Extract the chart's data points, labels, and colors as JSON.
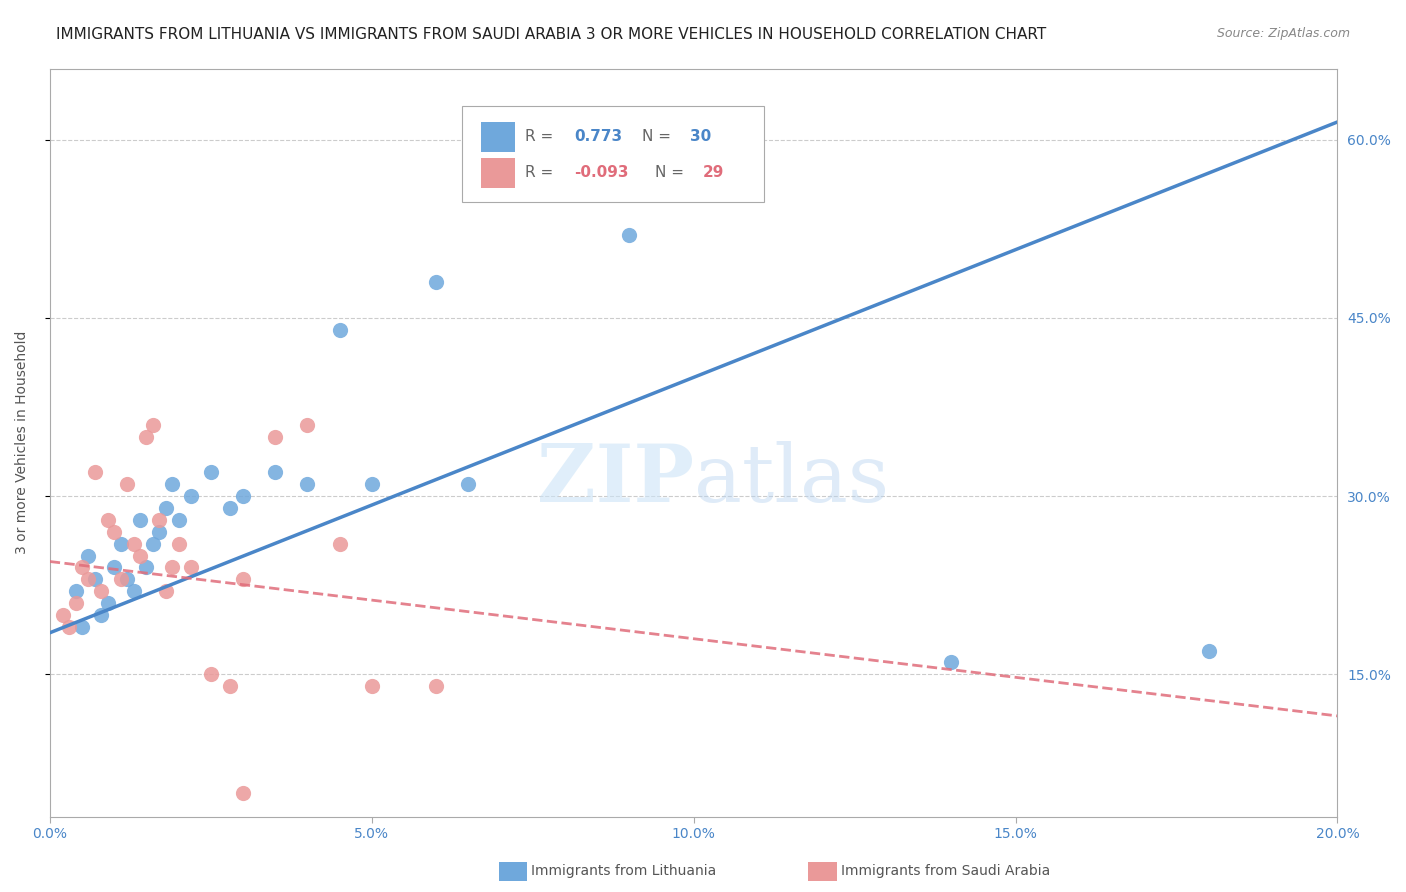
{
  "title": "IMMIGRANTS FROM LITHUANIA VS IMMIGRANTS FROM SAUDI ARABIA 3 OR MORE VEHICLES IN HOUSEHOLD CORRELATION CHART",
  "source": "Source: ZipAtlas.com",
  "ylabel": "3 or more Vehicles in Household",
  "watermark_zip": "ZIP",
  "watermark_atlas": "atlas",
  "legend_blue_label": "Immigrants from Lithuania",
  "legend_pink_label": "Immigrants from Saudi Arabia",
  "xlim": [
    0.0,
    0.2
  ],
  "ylim": [
    0.03,
    0.66
  ],
  "yticks": [
    0.15,
    0.3,
    0.45,
    0.6
  ],
  "ytick_labels": [
    "15.0%",
    "30.0%",
    "45.0%",
    "60.0%"
  ],
  "xticks": [
    0.0,
    0.05,
    0.1,
    0.15,
    0.2
  ],
  "xtick_labels": [
    "0.0%",
    "5.0%",
    "10.0%",
    "15.0%",
    "20.0%"
  ],
  "blue_color": "#6fa8dc",
  "pink_color": "#ea9999",
  "trendline_blue": "#4a86c8",
  "trendline_pink": "#e06c7a",
  "blue_scatter_x": [
    0.004,
    0.005,
    0.006,
    0.007,
    0.008,
    0.009,
    0.01,
    0.011,
    0.012,
    0.013,
    0.014,
    0.015,
    0.016,
    0.017,
    0.018,
    0.019,
    0.02,
    0.022,
    0.025,
    0.028,
    0.03,
    0.035,
    0.04,
    0.045,
    0.05,
    0.06,
    0.065,
    0.09,
    0.14,
    0.18
  ],
  "blue_scatter_y": [
    0.22,
    0.19,
    0.25,
    0.23,
    0.2,
    0.21,
    0.24,
    0.26,
    0.23,
    0.22,
    0.28,
    0.24,
    0.26,
    0.27,
    0.29,
    0.31,
    0.28,
    0.3,
    0.32,
    0.29,
    0.3,
    0.32,
    0.31,
    0.44,
    0.31,
    0.48,
    0.31,
    0.52,
    0.16,
    0.17
  ],
  "pink_scatter_x": [
    0.002,
    0.003,
    0.004,
    0.005,
    0.006,
    0.007,
    0.008,
    0.009,
    0.01,
    0.011,
    0.012,
    0.013,
    0.014,
    0.015,
    0.016,
    0.017,
    0.018,
    0.019,
    0.02,
    0.022,
    0.025,
    0.028,
    0.03,
    0.035,
    0.04,
    0.045,
    0.05,
    0.06,
    0.03
  ],
  "pink_scatter_y": [
    0.2,
    0.19,
    0.21,
    0.24,
    0.23,
    0.32,
    0.22,
    0.28,
    0.27,
    0.23,
    0.31,
    0.26,
    0.25,
    0.35,
    0.36,
    0.28,
    0.22,
    0.24,
    0.26,
    0.24,
    0.15,
    0.14,
    0.23,
    0.35,
    0.36,
    0.26,
    0.14,
    0.14,
    0.05
  ],
  "blue_trend_x": [
    0.0,
    0.2
  ],
  "blue_trend_y": [
    0.185,
    0.615
  ],
  "pink_trend_x": [
    0.0,
    0.2
  ],
  "pink_trend_y": [
    0.245,
    0.115
  ],
  "title_fontsize": 11,
  "axis_label_fontsize": 10,
  "tick_fontsize": 10,
  "background_color": "#ffffff",
  "grid_color": "#cccccc",
  "axis_color": "#aaaaaa",
  "right_axis_color": "#4a86c8",
  "legend_r_blue": "0.773",
  "legend_n_blue": "30",
  "legend_r_pink": "-0.093",
  "legend_n_pink": "29"
}
